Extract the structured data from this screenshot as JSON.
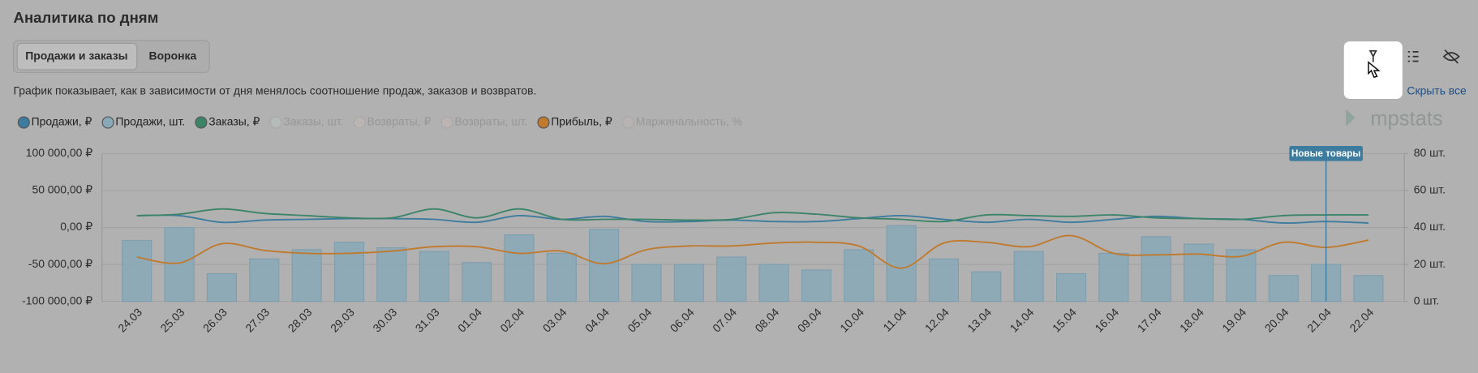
{
  "header": {
    "title": "Аналитика по дням"
  },
  "tabs": [
    {
      "label": "Продажи и заказы",
      "active": true
    },
    {
      "label": "Воронка",
      "active": false
    }
  ],
  "description": "График показывает, как в зависимости от дня менялось соотношение продаж, заказов и возвратов.",
  "hide_all": "Скрыть все",
  "logo": "mpstats",
  "chart_data": {
    "type": "combo",
    "categories": [
      "24.03",
      "25.03",
      "26.03",
      "27.03",
      "28.03",
      "29.03",
      "30.03",
      "31.03",
      "01.04",
      "02.04",
      "03.04",
      "04.04",
      "05.04",
      "06.04",
      "07.04",
      "08.04",
      "09.04",
      "10.04",
      "11.04",
      "12.04",
      "13.04",
      "14.04",
      "15.04",
      "16.04",
      "17.04",
      "18.04",
      "19.04",
      "20.04",
      "21.04",
      "22.04"
    ],
    "series": [
      {
        "name": "Продажи, ₽",
        "color": "#3d7c9e",
        "type": "line",
        "visible": true,
        "values": [
          16000,
          16000,
          7000,
          10000,
          11000,
          12000,
          12000,
          11000,
          7000,
          16000,
          11000,
          15000,
          8000,
          8000,
          10000,
          8000,
          8000,
          12000,
          16000,
          11000,
          7000,
          11000,
          7000,
          11000,
          15000,
          12000,
          11000,
          6000,
          8000,
          6000
        ]
      },
      {
        "name": "Продажи, шт.",
        "color": "#8aa9b8",
        "type": "bar",
        "axis": "y2",
        "visible": true,
        "values": [
          33,
          40,
          15,
          23,
          28,
          32,
          29,
          27,
          21,
          36,
          26,
          39,
          20,
          20,
          24,
          20,
          17,
          28,
          41,
          23,
          16,
          27,
          15,
          26,
          35,
          31,
          28,
          14,
          20,
          14
        ]
      },
      {
        "name": "Заказы, ₽",
        "color": "#3b8468",
        "type": "line",
        "visible": true,
        "values": [
          16000,
          18000,
          25000,
          19000,
          16000,
          13000,
          13000,
          25000,
          13000,
          25000,
          11000,
          11000,
          11000,
          10000,
          11000,
          20000,
          18000,
          13000,
          11000,
          8000,
          17000,
          16000,
          15000,
          17000,
          13000,
          12000,
          11000,
          16000,
          17000,
          17000
        ]
      },
      {
        "name": "Заказы, шт.",
        "color": "#b3bcb8",
        "visible": false
      },
      {
        "name": "Возвраты, ₽",
        "color": "#bcb3b3",
        "visible": false
      },
      {
        "name": "Возвраты, шт.",
        "color": "#bcb3b3",
        "visible": false
      },
      {
        "name": "Прибыль, ₽",
        "color": "#c07a2e",
        "type": "line",
        "visible": true,
        "values": [
          -40000,
          -48000,
          -22000,
          -31000,
          -35000,
          -35000,
          -32000,
          -26000,
          -26000,
          -35000,
          -32000,
          -49000,
          -30000,
          -25000,
          -25000,
          -21000,
          -20000,
          -25000,
          -55000,
          -21000,
          -20000,
          -26000,
          -11000,
          -35000,
          -37000,
          -36000,
          -39000,
          -20000,
          -27000,
          -17000
        ]
      },
      {
        "name": "Маржинальность, %",
        "color": "#b8b3b3",
        "visible": false
      }
    ],
    "ylim": [
      -100000,
      100000
    ],
    "yticks": [
      {
        "value": -100000,
        "label": "-100 000,00 ₽"
      },
      {
        "value": -50000,
        "label": "-50 000,00 ₽"
      },
      {
        "value": 0,
        "label": "0,00 ₽"
      },
      {
        "value": 50000,
        "label": "50 000,00 ₽"
      },
      {
        "value": 100000,
        "label": "100 000,00 ₽"
      }
    ],
    "y2lim": [
      0,
      80
    ],
    "y2ticks": [
      {
        "value": 0,
        "label": "0 шт."
      },
      {
        "value": 20,
        "label": "20 шт."
      },
      {
        "value": 40,
        "label": "40 шт."
      },
      {
        "value": 60,
        "label": "60 шт."
      },
      {
        "value": 80,
        "label": "80 шт."
      }
    ],
    "grid": true,
    "annotations": [
      {
        "text": "Новые товары",
        "x": "21.04"
      }
    ]
  }
}
